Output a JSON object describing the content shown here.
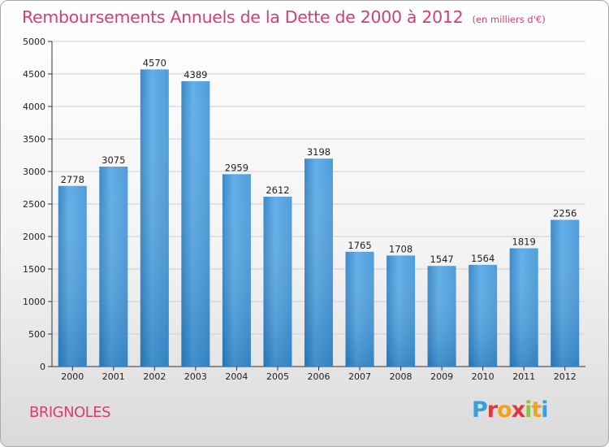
{
  "chart_data": {
    "type": "bar",
    "title": "Remboursements Annuels de la Dette de 2000 à 2012",
    "subtitle": "(en milliers d'€)",
    "categories": [
      "2000",
      "2001",
      "2002",
      "2003",
      "2004",
      "2005",
      "2006",
      "2007",
      "2008",
      "2009",
      "2010",
      "2011",
      "2012"
    ],
    "values": [
      2778,
      3075,
      4570,
      4389,
      2959,
      2612,
      3198,
      1765,
      1708,
      1547,
      1564,
      1819,
      2256
    ],
    "ylim": [
      0,
      5000
    ],
    "yticks": [
      0,
      500,
      1000,
      1500,
      2000,
      2500,
      3000,
      3500,
      4000,
      4500,
      5000
    ],
    "grid": true,
    "bar_color": "#3f94d8",
    "xlabel": "",
    "ylabel": ""
  },
  "commune": "BRIGNOLES",
  "logo": {
    "text": "Proxiti",
    "colors": [
      "#3aa0d8",
      "#e0383c",
      "#f3a21b",
      "#e0383c",
      "#8cc63f",
      "#f3a21b",
      "#3aa0d8"
    ]
  },
  "colors": {
    "title": "#d43f70",
    "axis": "#333333",
    "grid": "#cfcfcf"
  }
}
